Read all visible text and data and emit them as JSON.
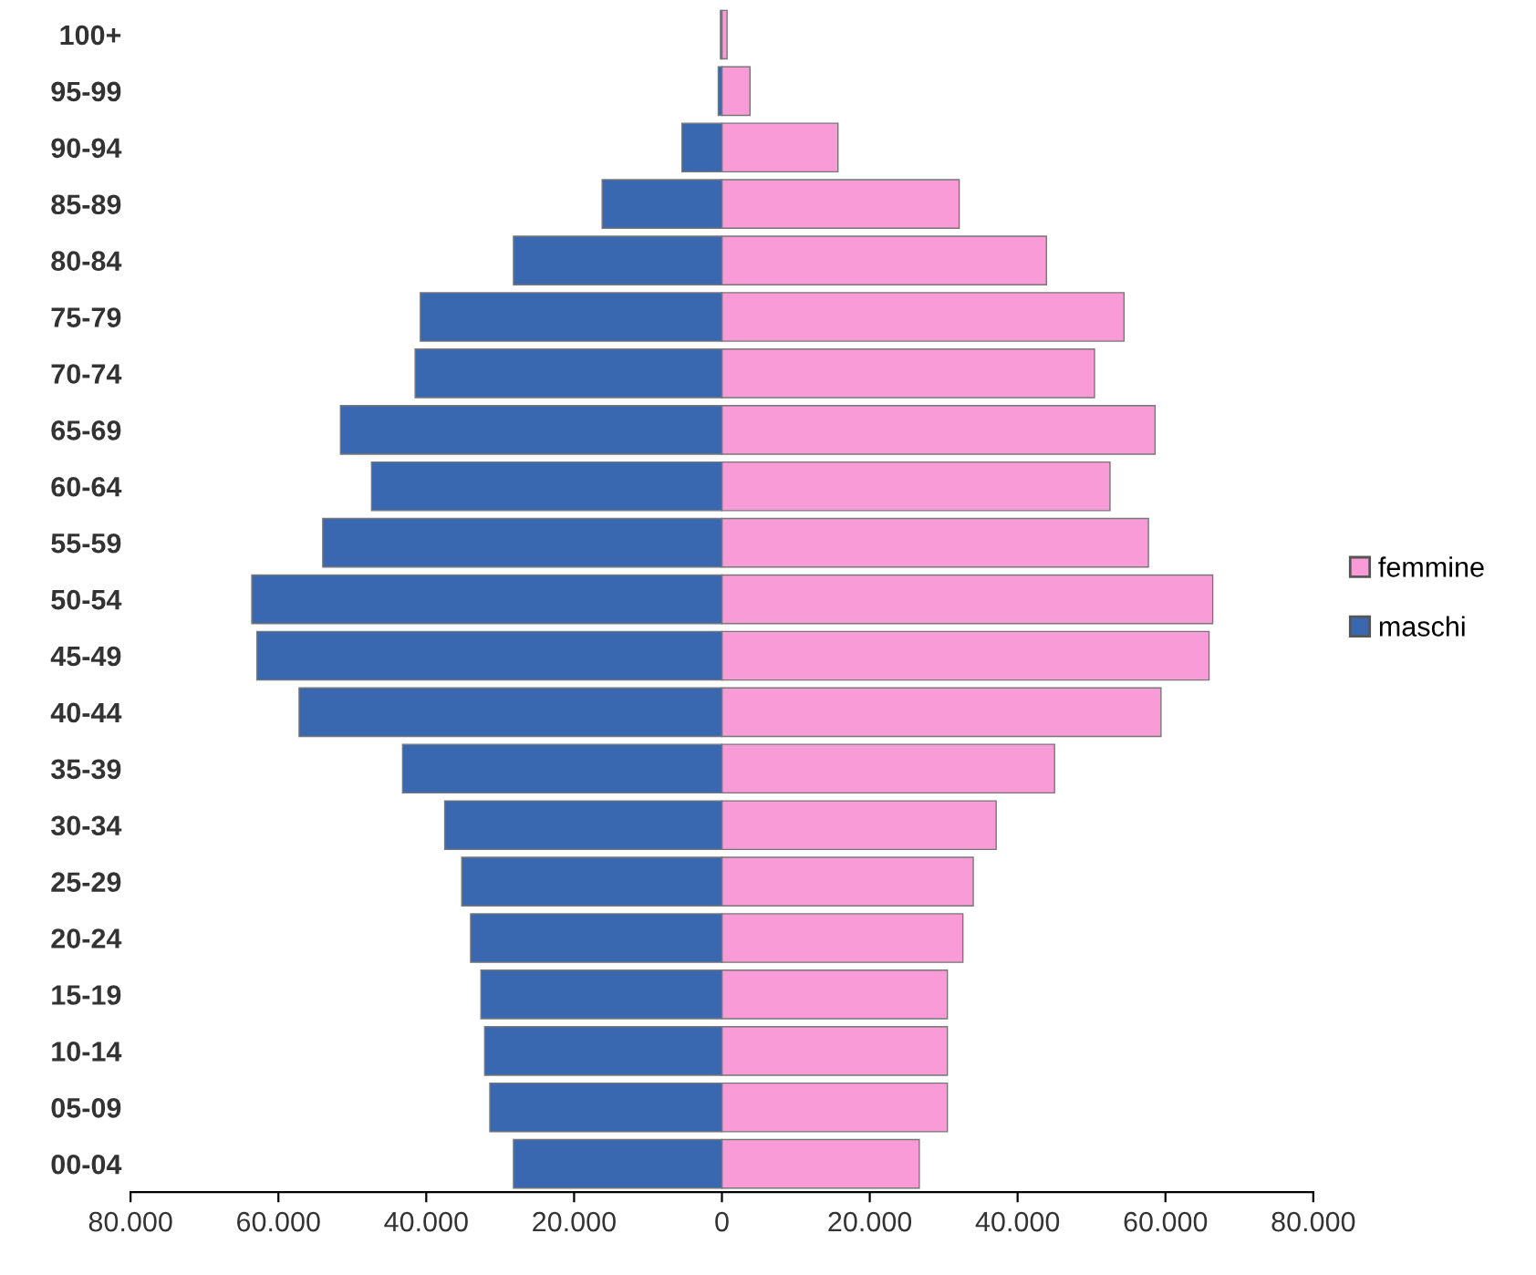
{
  "chart_data": {
    "type": "bar",
    "orientation": "horizontal",
    "categories": [
      "100+",
      "95-99",
      "90-94",
      "85-89",
      "80-84",
      "75-79",
      "70-74",
      "65-69",
      "60-64",
      "55-59",
      "50-54",
      "45-49",
      "40-44",
      "35-39",
      "30-34",
      "25-29",
      "20-24",
      "15-19",
      "10-14",
      "05-09",
      "00-04"
    ],
    "series": [
      {
        "name": "femmine",
        "color": "#f99bd6",
        "values": [
          700,
          3800,
          15700,
          32100,
          43900,
          54400,
          50400,
          58600,
          52500,
          57700,
          66400,
          65900,
          59400,
          45000,
          37100,
          34000,
          32600,
          30500,
          30500,
          30500,
          26700
        ]
      },
      {
        "name": "maschi",
        "color": "#3a68b0",
        "values": [
          -200,
          -500,
          -5400,
          -16200,
          -28200,
          -40800,
          -41500,
          -51600,
          -47400,
          -54000,
          -63600,
          -62900,
          -57200,
          -43200,
          -37500,
          -35200,
          -34000,
          -32600,
          -32100,
          -31400,
          -28200
        ]
      }
    ],
    "xlim": [
      -80000,
      80000
    ],
    "xticks": [
      {
        "value": -80000,
        "label": "80.000"
      },
      {
        "value": -60000,
        "label": "60.000"
      },
      {
        "value": -40000,
        "label": "40.000"
      },
      {
        "value": -20000,
        "label": "20.000"
      },
      0,
      {
        "value": 20000,
        "label": "20.000"
      },
      {
        "value": 40000,
        "label": "40.000"
      },
      {
        "value": 60000,
        "label": "60.000"
      },
      {
        "value": 80000,
        "label": "80.000"
      }
    ],
    "grid": false,
    "legend": "right",
    "stacked": true
  }
}
